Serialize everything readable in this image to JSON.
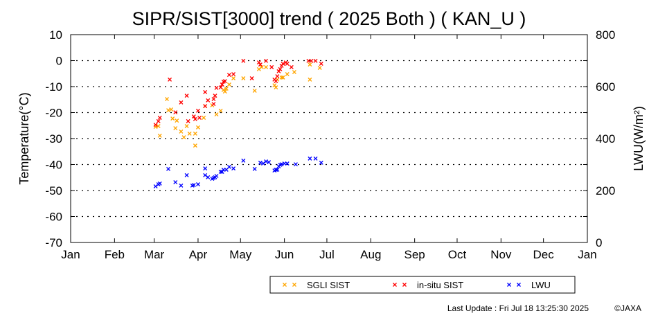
{
  "chart_data": {
    "type": "scatter",
    "title": "SIPR/SIST[3000] trend ( 2025 Both ) ( KAN_U )",
    "xlabel": "",
    "ylabel": "Temperature(°C)",
    "y2label": "LWU(W/m²)",
    "x_unit": "day of year 2025",
    "xlim": [
      0,
      365
    ],
    "ylim": [
      -70,
      10
    ],
    "y2lim": [
      0,
      800
    ],
    "x_ticks": [
      {
        "label": "Jan",
        "day": 0
      },
      {
        "label": "Feb",
        "day": 31
      },
      {
        "label": "Mar",
        "day": 59
      },
      {
        "label": "Apr",
        "day": 90
      },
      {
        "label": "May",
        "day": 120
      },
      {
        "label": "Jun",
        "day": 151
      },
      {
        "label": "Jul",
        "day": 181
      },
      {
        "label": "Aug",
        "day": 212
      },
      {
        "label": "Sep",
        "day": 243
      },
      {
        "label": "Oct",
        "day": 273
      },
      {
        "label": "Nov",
        "day": 304
      },
      {
        "label": "Dec",
        "day": 334
      },
      {
        "label": "Jan",
        "day": 365
      }
    ],
    "y_ticks": [
      "10",
      "0",
      "-10",
      "-20",
      "-30",
      "-40",
      "-50",
      "-60",
      "-70"
    ],
    "y2_ticks": [
      "800",
      "600",
      "400",
      "200",
      "0"
    ],
    "grid": "horizontal dotted",
    "legend_placement": "bottom-right",
    "series": [
      {
        "name": "SGLI SIST",
        "axis": "left",
        "color": "#ffa500",
        "points": [
          [
            60,
            -25.5
          ],
          [
            62,
            -25.2
          ],
          [
            63,
            -28.9
          ],
          [
            68,
            -14.8
          ],
          [
            69,
            -19.1
          ],
          [
            71,
            -18.8
          ],
          [
            72,
            -22.3
          ],
          [
            74,
            -26.0
          ],
          [
            75,
            -23.1
          ],
          [
            78,
            -27.3
          ],
          [
            80,
            -29.5
          ],
          [
            82,
            -25.2
          ],
          [
            84,
            -28.1
          ],
          [
            88,
            -32.7
          ],
          [
            88,
            -28.1
          ],
          [
            90,
            -25.7
          ],
          [
            94,
            -22.0
          ],
          [
            95,
            -17.5
          ],
          [
            100,
            -17.2
          ],
          [
            103,
            -20.7
          ],
          [
            106,
            -19.3
          ],
          [
            108,
            -11.3
          ],
          [
            109,
            -11.9
          ],
          [
            110,
            -10.8
          ],
          [
            112,
            -9.2
          ],
          [
            115,
            -6.8
          ],
          [
            122,
            -6.8
          ],
          [
            130,
            -11.6
          ],
          [
            133,
            -3.3
          ],
          [
            135,
            -2.5
          ],
          [
            138,
            -2.5
          ],
          [
            144,
            -9.5
          ],
          [
            145,
            -10.3
          ],
          [
            146,
            -7.3
          ],
          [
            149,
            -6.5
          ],
          [
            150,
            -6.5
          ],
          [
            153,
            -5.2
          ],
          [
            158,
            -4.4
          ],
          [
            169,
            -7.3
          ],
          [
            169,
            -1.5
          ],
          [
            176,
            -2.8
          ]
        ]
      },
      {
        "name": "in-situ SIST",
        "axis": "left",
        "color": "#ff0000",
        "points": [
          [
            60,
            -24.7
          ],
          [
            62,
            -23.3
          ],
          [
            63,
            -22.0
          ],
          [
            70,
            -7.3
          ],
          [
            74,
            -19.9
          ],
          [
            78,
            -16.1
          ],
          [
            82,
            -13.5
          ],
          [
            83,
            -23.3
          ],
          [
            87,
            -21.5
          ],
          [
            88,
            -22.5
          ],
          [
            90,
            -19.3
          ],
          [
            91,
            -22.0
          ],
          [
            95,
            -17.5
          ],
          [
            95,
            -12.1
          ],
          [
            97,
            -15.3
          ],
          [
            101,
            -14.8
          ],
          [
            101,
            -16.7
          ],
          [
            102,
            -13.5
          ],
          [
            103,
            -10.5
          ],
          [
            106,
            -10.3
          ],
          [
            107,
            -9.2
          ],
          [
            108,
            -8.1
          ],
          [
            109,
            -7.9
          ],
          [
            112,
            -5.5
          ],
          [
            115,
            -5.2
          ],
          [
            122,
            -0.1
          ],
          [
            128,
            -6.8
          ],
          [
            133,
            -0.7
          ],
          [
            134,
            -1.5
          ],
          [
            138,
            -0.1
          ],
          [
            142,
            -2.5
          ],
          [
            144,
            -7.3
          ],
          [
            145,
            -7.9
          ],
          [
            146,
            -6.0
          ],
          [
            147,
            -4.1
          ],
          [
            148,
            -3.3
          ],
          [
            149,
            -2.0
          ],
          [
            150,
            -1.2
          ],
          [
            152,
            -0.7
          ],
          [
            153,
            -1.2
          ],
          [
            156,
            -2.5
          ],
          [
            168,
            -0.1
          ],
          [
            170,
            -0.1
          ],
          [
            173,
            -0.1
          ],
          [
            177,
            -1.2
          ]
        ]
      },
      {
        "name": "LWU",
        "axis": "right",
        "color": "#0000ff",
        "points": [
          [
            60,
            216
          ],
          [
            62,
            224
          ],
          [
            63,
            227
          ],
          [
            69,
            283
          ],
          [
            74,
            232
          ],
          [
            78,
            219
          ],
          [
            82,
            259
          ],
          [
            86,
            219
          ],
          [
            87,
            221
          ],
          [
            90,
            224
          ],
          [
            95,
            259
          ],
          [
            95,
            285
          ],
          [
            97,
            251
          ],
          [
            100,
            245
          ],
          [
            101,
            248
          ],
          [
            102,
            251
          ],
          [
            103,
            256
          ],
          [
            106,
            272
          ],
          [
            107,
            272
          ],
          [
            108,
            280
          ],
          [
            110,
            280
          ],
          [
            112,
            291
          ],
          [
            115,
            285
          ],
          [
            122,
            315
          ],
          [
            130,
            283
          ],
          [
            134,
            307
          ],
          [
            136,
            304
          ],
          [
            138,
            312
          ],
          [
            140,
            309
          ],
          [
            144,
            277
          ],
          [
            145,
            280
          ],
          [
            146,
            280
          ],
          [
            147,
            293
          ],
          [
            148,
            299
          ],
          [
            149,
            301
          ],
          [
            151,
            304
          ],
          [
            153,
            304
          ],
          [
            159,
            301
          ],
          [
            169,
            323
          ],
          [
            173,
            323
          ],
          [
            177,
            307
          ]
        ]
      }
    ]
  },
  "footer": {
    "last_update": "Last Update : Fri Jul 18 13:25:30 2025",
    "copyright": "©JAXA"
  }
}
